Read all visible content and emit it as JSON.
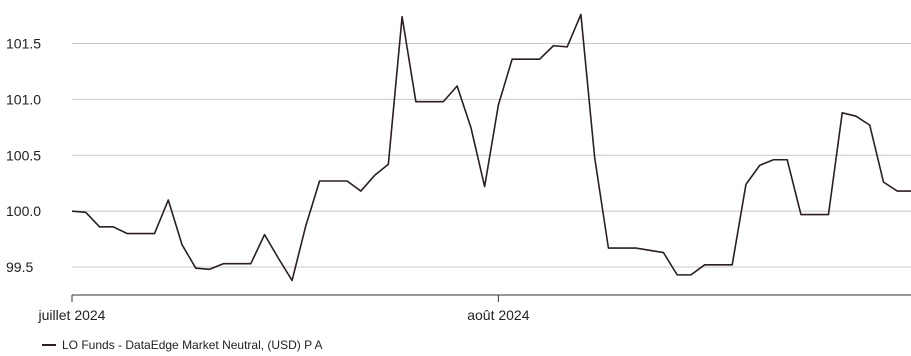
{
  "colors": {
    "series": "#2b1f22",
    "grid": "#c8c8c8",
    "axis": "#333333"
  },
  "chart_data": {
    "type": "line",
    "ylim": [
      99.25,
      101.8
    ],
    "grid": "horizontal",
    "legend_placement": "bottom-left",
    "y_ticks": [
      {
        "value": 99.5,
        "label": "99.5"
      },
      {
        "value": 100.0,
        "label": "100.0"
      },
      {
        "value": 100.5,
        "label": "100.5"
      },
      {
        "value": 101.0,
        "label": "101.0"
      },
      {
        "value": 101.5,
        "label": "101.5"
      }
    ],
    "x_ticks": [
      {
        "index": 0,
        "label": "juillet 2024"
      },
      {
        "index": 31,
        "label": "août 2024"
      }
    ],
    "series": [
      {
        "name": "LO Funds - DataEdge Market Neutral, (USD) P A",
        "values": [
          100.0,
          99.99,
          99.86,
          99.86,
          99.8,
          99.8,
          99.8,
          100.1,
          99.7,
          99.49,
          99.48,
          99.53,
          99.53,
          99.53,
          99.79,
          99.58,
          99.38,
          99.87,
          100.27,
          100.27,
          100.27,
          100.18,
          100.32,
          100.42,
          101.74,
          100.98,
          100.98,
          100.98,
          101.12,
          100.75,
          100.22,
          100.95,
          101.36,
          101.36,
          101.36,
          101.48,
          101.47,
          101.76,
          100.48,
          99.67,
          99.67,
          99.67,
          99.65,
          99.63,
          99.43,
          99.43,
          99.52,
          99.52,
          99.52,
          100.24,
          100.41,
          100.46,
          100.46,
          99.97,
          99.97,
          99.97,
          100.88,
          100.85,
          100.77,
          100.26,
          100.18,
          100.18
        ]
      }
    ]
  }
}
